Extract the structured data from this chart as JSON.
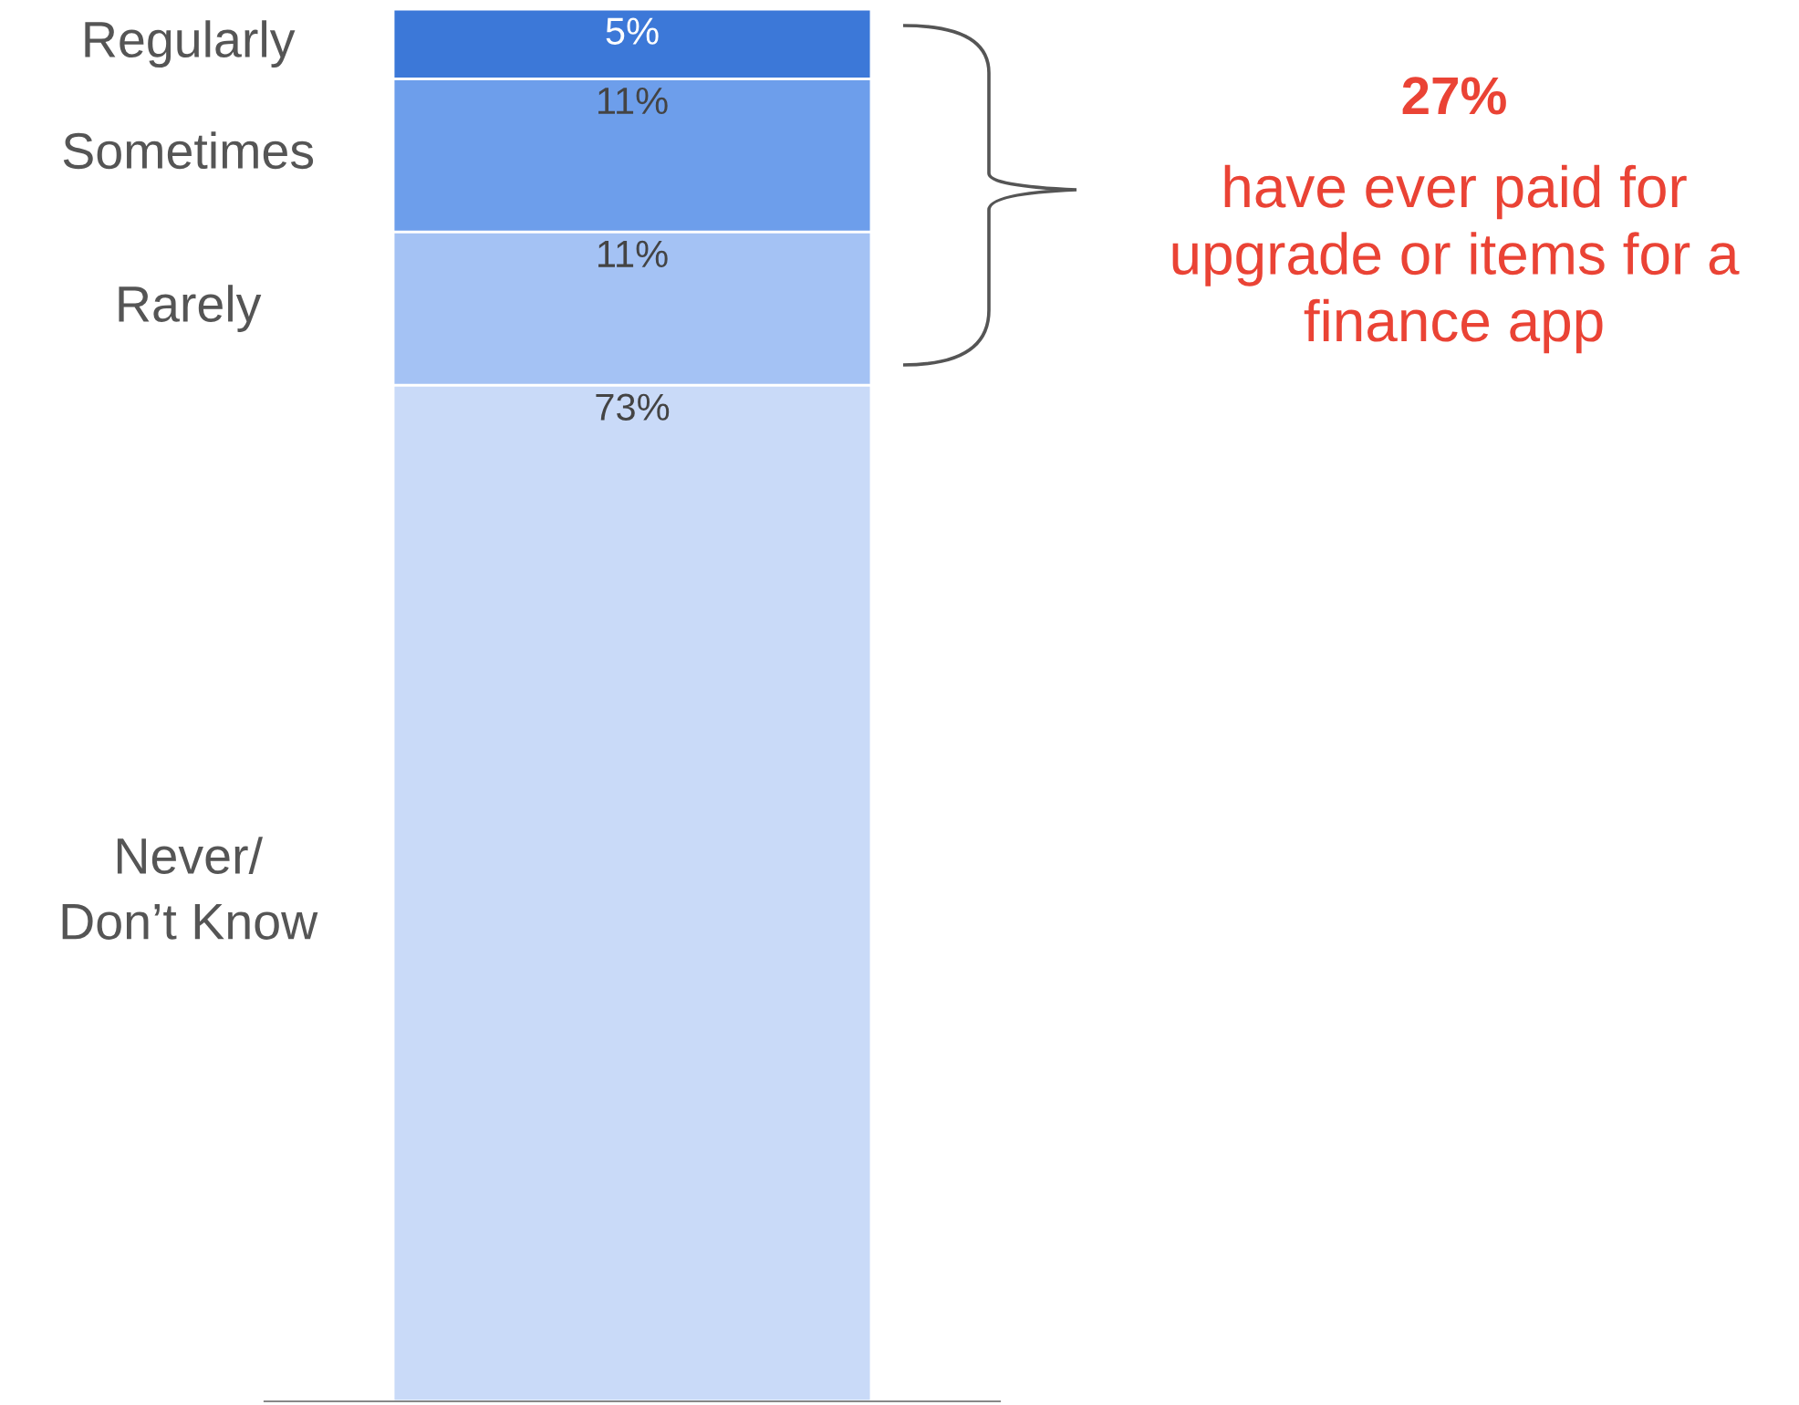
{
  "chart_data": {
    "type": "bar",
    "stacked": true,
    "categories": [
      null
    ],
    "series": [
      {
        "name": "Never/\nDon’t Know",
        "color": "#c9daf8",
        "values": [
          73
        ],
        "value_labels": [
          "73%"
        ]
      },
      {
        "name": "Rarely",
        "color": "#a4c2f4",
        "values": [
          11
        ],
        "value_labels": [
          "11%"
        ]
      },
      {
        "name": "Sometimes",
        "color": "#6d9eeb",
        "values": [
          11
        ],
        "value_labels": [
          "11%"
        ]
      },
      {
        "name": "Regularly",
        "color": "#3c78d8",
        "values": [
          5
        ],
        "value_labels": [
          "5%"
        ]
      }
    ],
    "annotations": [
      "27%",
      "have ever paid for\nupgrade or items for a\nfinance app"
    ]
  }
}
